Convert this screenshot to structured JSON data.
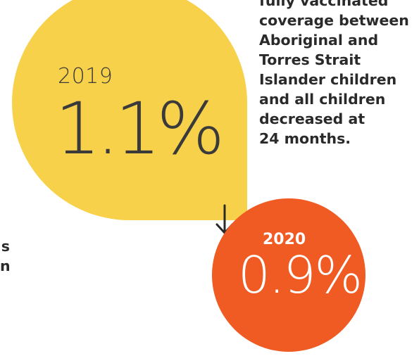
{
  "note_lines": [
    "fully vaccinated",
    "coverage between",
    "Aboriginal and",
    "Torres Strait",
    "Islander children",
    "and all children",
    "decreased at",
    "24 months."
  ],
  "left_fragments": [
    "s",
    "n"
  ],
  "stat_2019": {
    "year": "2019",
    "value": "1.1%"
  },
  "stat_2020": {
    "year": "2020",
    "value": "0.9%"
  },
  "arrow_icon": "arrow-down-icon",
  "colors": {
    "yellow": "#f8d14a",
    "orange": "#f05a23",
    "text_dark": "#3a3a3a"
  }
}
